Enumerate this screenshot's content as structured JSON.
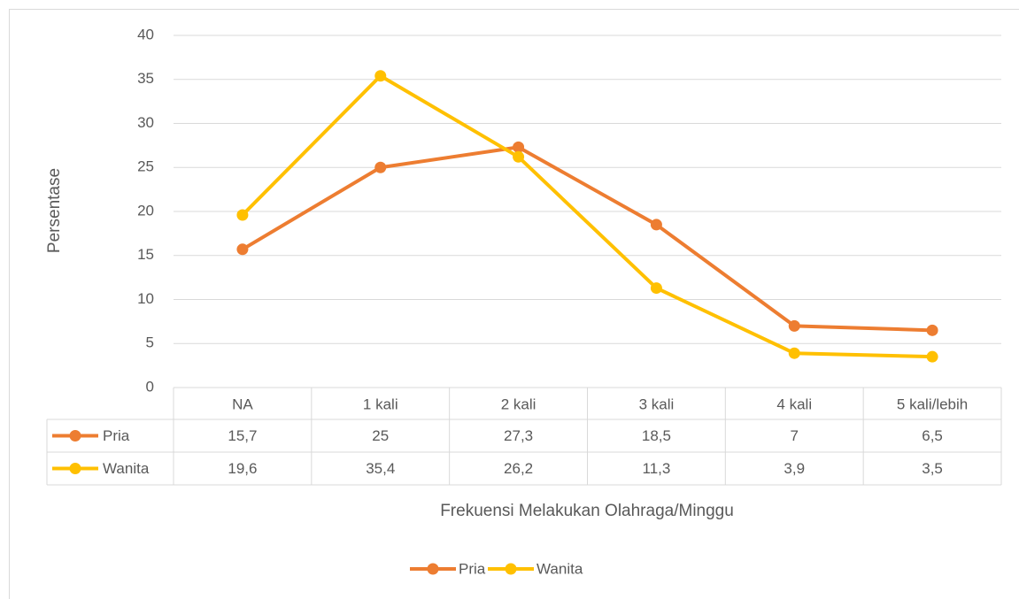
{
  "chart_data": {
    "type": "line",
    "y_label": "Persentase",
    "x_label": "Frekuensi Melakukan Olahraga/Minggu",
    "categories": [
      "NA",
      "1 kali",
      "2 kali",
      "3 kali",
      "4 kali",
      "5 kali/lebih"
    ],
    "series": [
      {
        "name": "Pria",
        "color": "#ed7d31",
        "values": [
          15.7,
          25,
          27.3,
          18.5,
          7,
          6.5
        ],
        "value_labels": [
          "15,7",
          "25",
          "27,3",
          "18,5",
          "7",
          "6,5"
        ]
      },
      {
        "name": "Wanita",
        "color": "#ffc000",
        "values": [
          19.6,
          35.4,
          26.2,
          11.3,
          3.9,
          3.5
        ],
        "value_labels": [
          "19,6",
          "35,4",
          "26,2",
          "11,3",
          "3,9",
          "3,5"
        ]
      }
    ],
    "ylim": [
      0,
      40
    ],
    "yticks": [
      0,
      5,
      10,
      15,
      20,
      25,
      30,
      35,
      40
    ],
    "grid": true,
    "legend": "bottom"
  }
}
